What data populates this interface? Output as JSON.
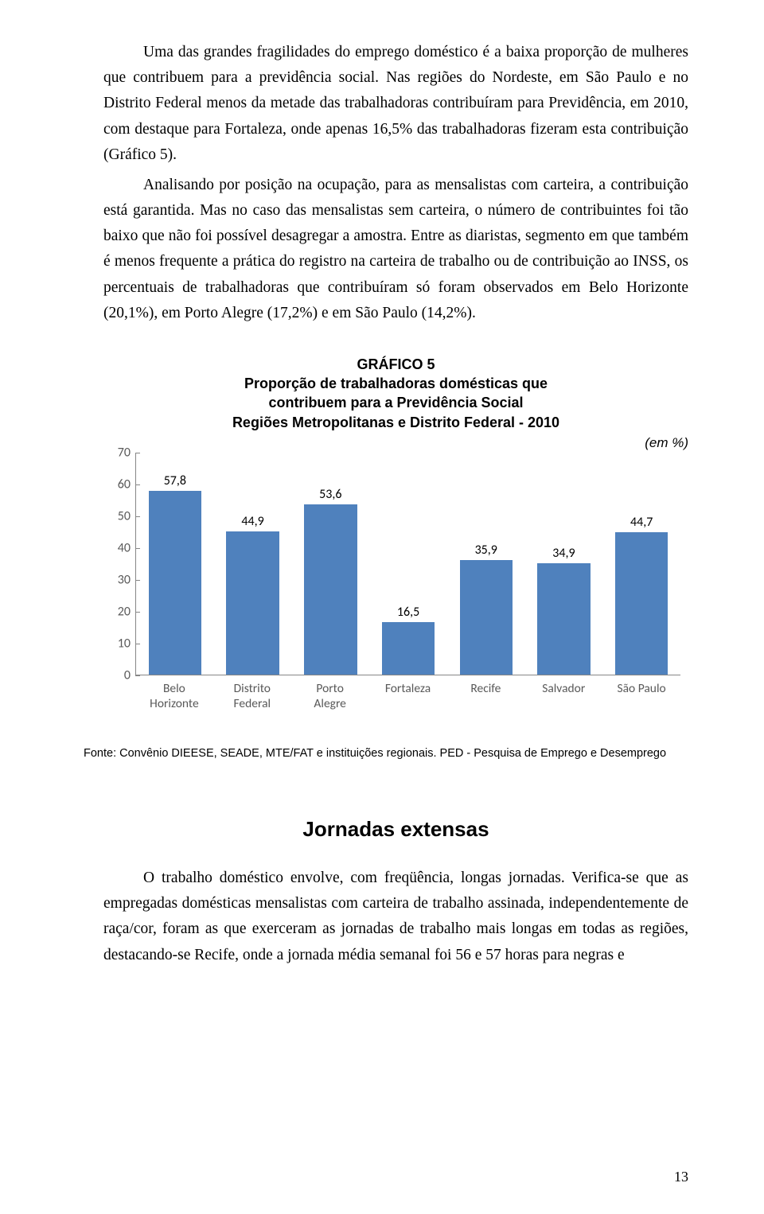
{
  "paragraphs": {
    "p1": "Uma das grandes fragilidades do emprego doméstico é a baixa proporção de mulheres que contribuem para a previdência social. Nas regiões do Nordeste, em São Paulo e no Distrito Federal menos da metade das trabalhadoras contribuíram para Previdência, em 2010, com destaque para Fortaleza, onde apenas 16,5% das trabalhadoras fizeram esta contribuição (Gráfico 5).",
    "p2": "Analisando por posição na ocupação, para as mensalistas com carteira, a contribuição está garantida. Mas no caso das mensalistas sem carteira, o número de contribuintes foi tão baixo que não foi possível desagregar a amostra. Entre as diaristas, segmento em que também é menos frequente a prática do registro na carteira de trabalho ou de contribuição ao INSS, os percentuais de trabalhadoras que contribuíram só foram observados em Belo Horizonte (20,1%), em Porto Alegre (17,2%) e em São Paulo (14,2%).",
    "p3": "O trabalho doméstico envolve, com freqüência, longas jornadas. Verifica-se que as empregadas domésticas mensalistas com carteira de trabalho assinada, independentemente de raça/cor, foram as que exerceram as jornadas de trabalho mais longas em todas as regiões, destacando-se Recife, onde a jornada média semanal foi 56 e 57 horas para negras e"
  },
  "chart": {
    "type": "bar",
    "title_line1": "GRÁFICO 5",
    "title_line2": "Proporção de trabalhadoras domésticas que",
    "title_line3": "contribuem para a Previdência Social",
    "title_line4": "Regiões Metropolitanas e Distrito Federal - 2010",
    "unit": "(em %)",
    "ylim": [
      0,
      70
    ],
    "ytick_step": 10,
    "yticks": [
      0,
      10,
      20,
      30,
      40,
      50,
      60,
      70
    ],
    "bar_color": "#4f81bd",
    "axis_color": "#868686",
    "tick_label_color": "#595959",
    "value_label_color": "#000000",
    "background_color": "#ffffff",
    "categories": [
      "Belo Horizonte",
      "Distrito Federal",
      "Porto Alegre",
      "Fortaleza",
      "Recife",
      "Salvador",
      "São Paulo"
    ],
    "values": [
      57.8,
      44.9,
      53.6,
      16.5,
      35.9,
      34.9,
      44.7
    ],
    "value_labels": [
      "57,8",
      "44,9",
      "53,6",
      "16,5",
      "35,9",
      "34,9",
      "44,7"
    ],
    "source": "Fonte: Convênio DIEESE, SEADE, MTE/FAT e instituições regionais. PED - Pesquisa de Emprego e Desemprego"
  },
  "section_heading": "Jornadas extensas",
  "page_number": "13"
}
